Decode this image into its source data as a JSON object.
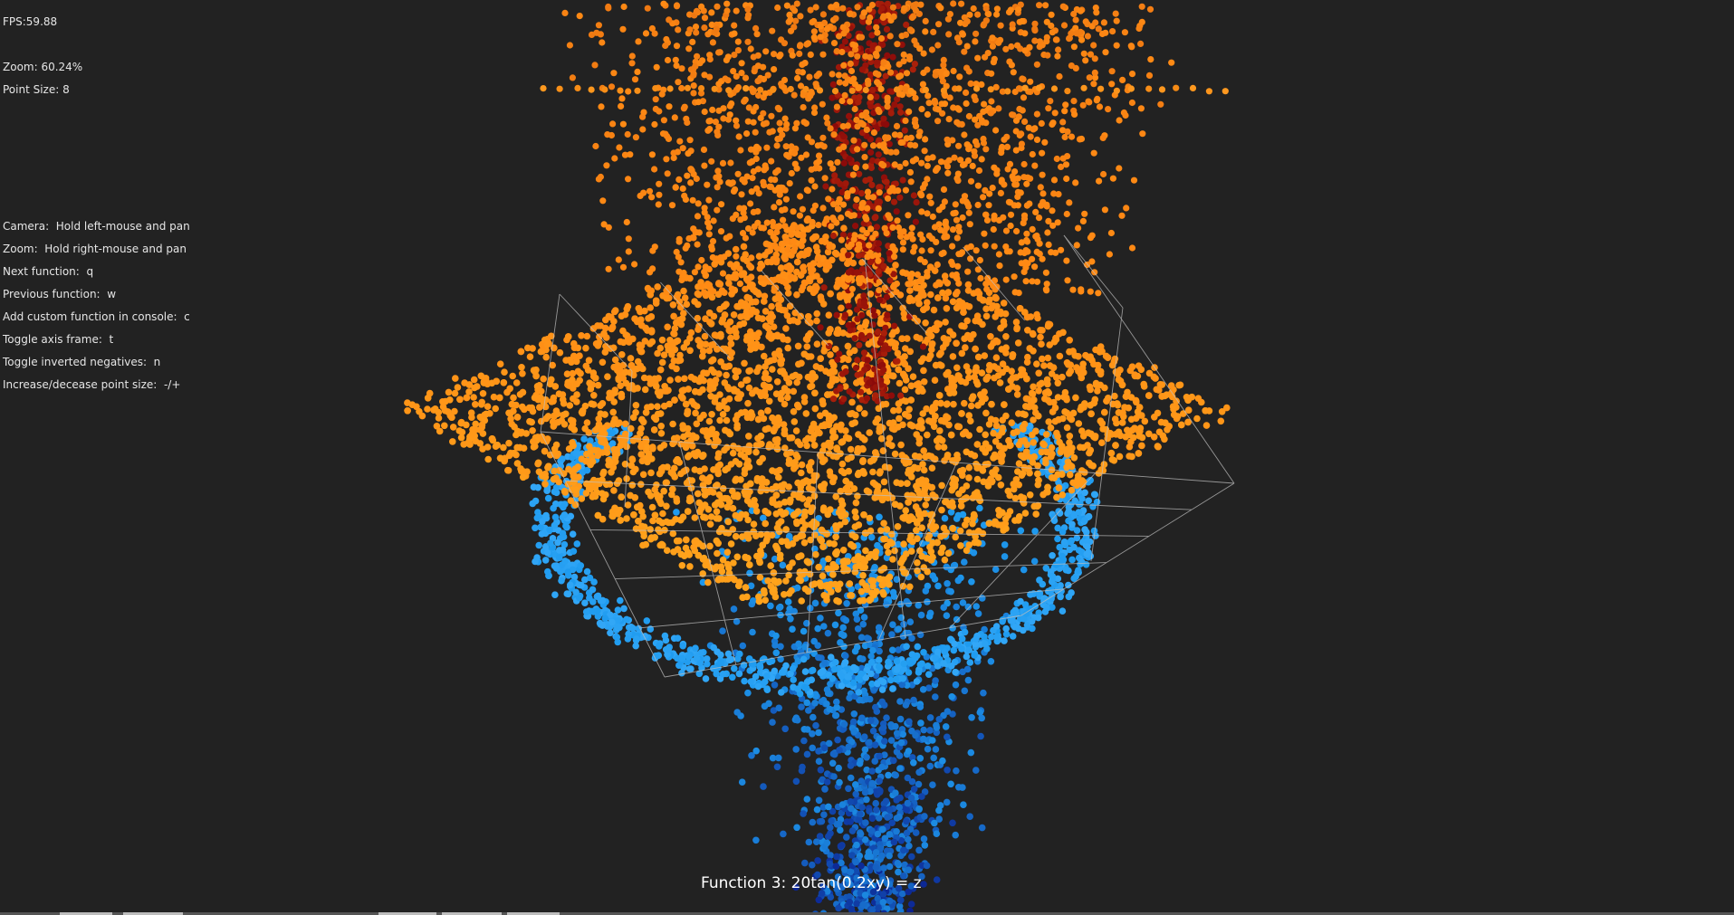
{
  "app": {
    "fps_label": "FPS:59.88",
    "zoom_label": "Zoom: 60.24%",
    "point_size_label": "Point Size: 8"
  },
  "controls": [
    "Camera:  Hold left-mouse and pan",
    "Zoom:  Hold right-mouse and pan",
    "Next function:  q",
    "Previous function:  w",
    "Add custom function in console:  c",
    "Toggle axis frame:  t",
    "Toggle inverted negatives:  n",
    "Increase/decease point size:  -/+"
  ],
  "function_caption": "Function 3: 20tan(0.2xy) = z",
  "colors": {
    "background": "#222222",
    "positive_high": "#8b0a0a",
    "positive_mid": "#ff8a14",
    "positive_low": "#ffa41c",
    "negative_high": "#1e9bef",
    "negative_low": "#0a1a8a",
    "axis_frame": "#bfbfbf",
    "hud_text": "#e6e6e6"
  }
}
